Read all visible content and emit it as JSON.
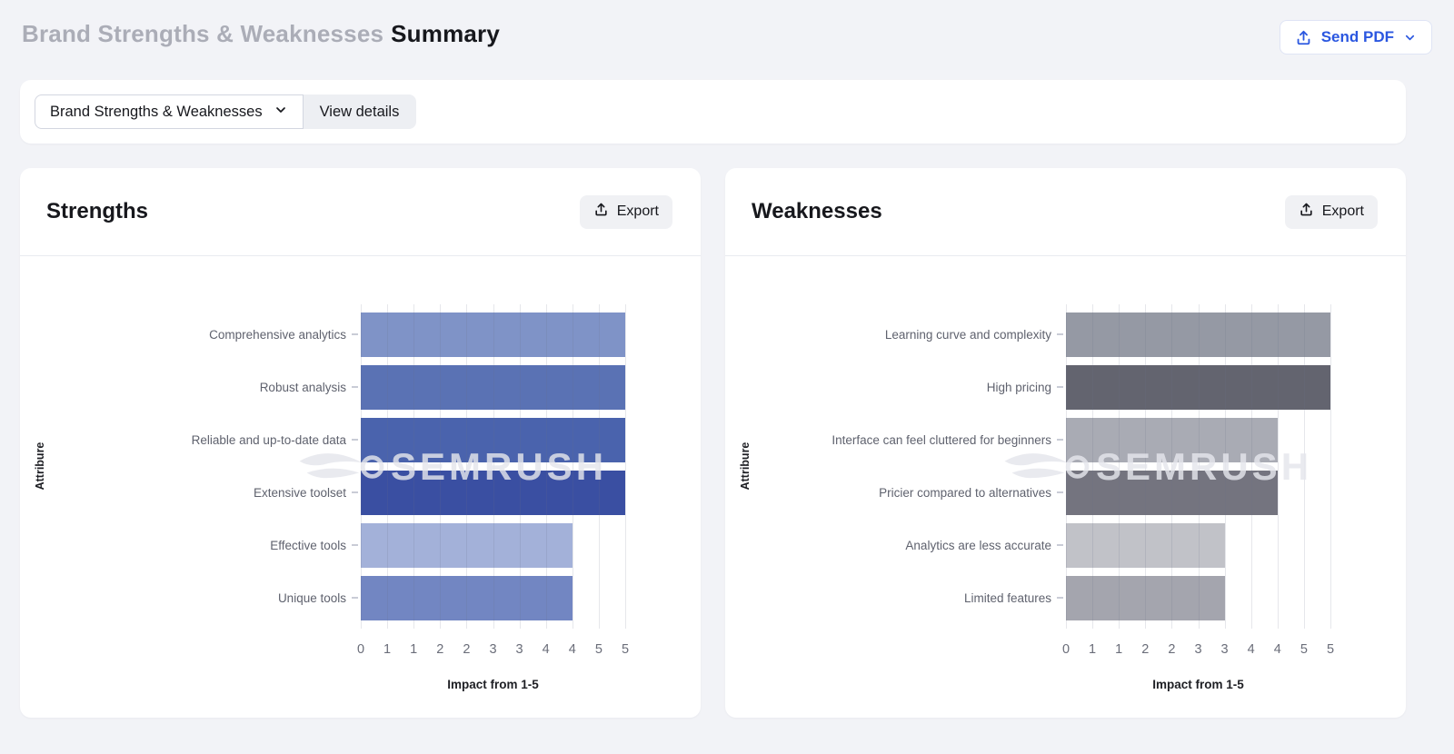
{
  "page": {
    "title_muted": "Brand Strengths & Weaknesses",
    "title_strong": "Summary",
    "send_pdf_label": "Send PDF"
  },
  "toolbar": {
    "dropdown_label": "Brand Strengths & Weaknesses",
    "view_details_label": "View details"
  },
  "cards": [
    {
      "title": "Strengths",
      "export_label": "Export"
    },
    {
      "title": "Weaknesses",
      "export_label": "Export"
    }
  ],
  "watermark_text": "SEMRUSH",
  "colors": {
    "accent_blue": "#2b57e0",
    "page_bg": "#f2f3f7",
    "card_bg": "#ffffff",
    "muted_title": "#abadb7"
  },
  "chart_data": [
    {
      "type": "bar",
      "orientation": "horizontal",
      "title": "Strengths",
      "categories": [
        "Comprehensive analytics",
        "Robust analysis",
        "Reliable and up-to-date data",
        "Extensive toolset",
        "Effective tools",
        "Unique tools"
      ],
      "values": [
        5,
        5,
        5,
        5,
        4,
        4
      ],
      "bar_colors": [
        "#7f93c7",
        "#5a72b4",
        "#4a63ad",
        "#3a4fa2",
        "#a3b1d9",
        "#7286c2"
      ],
      "xlabel": "Impact from 1-5",
      "ylabel": "Attribure",
      "xlim": [
        0,
        5
      ],
      "tick_values": [
        0,
        0.5,
        1,
        1.5,
        2,
        2.5,
        3,
        3.5,
        4,
        4.5,
        5
      ],
      "tick_labels": [
        "0",
        "1",
        "1",
        "2",
        "2",
        "3",
        "3",
        "4",
        "4",
        "5",
        "5"
      ],
      "grid": true,
      "legend": false
    },
    {
      "type": "bar",
      "orientation": "horizontal",
      "title": "Weaknesses",
      "categories": [
        "Learning curve and complexity",
        "High pricing",
        "Interface can feel cluttered for beginners",
        "Pricier compared to alternatives",
        "Analytics are less accurate",
        "Limited features"
      ],
      "values": [
        5,
        5,
        4,
        4,
        3,
        3
      ],
      "bar_colors": [
        "#9599a4",
        "#63646f",
        "#a9abb4",
        "#74747f",
        "#c1c2c8",
        "#a4a5ae"
      ],
      "xlabel": "Impact from 1-5",
      "ylabel": "Attribure",
      "xlim": [
        0,
        5
      ],
      "tick_values": [
        0,
        0.5,
        1,
        1.5,
        2,
        2.5,
        3,
        3.5,
        4,
        4.5,
        5
      ],
      "tick_labels": [
        "0",
        "1",
        "1",
        "2",
        "2",
        "3",
        "3",
        "4",
        "4",
        "5",
        "5"
      ],
      "grid": true,
      "legend": false
    }
  ]
}
